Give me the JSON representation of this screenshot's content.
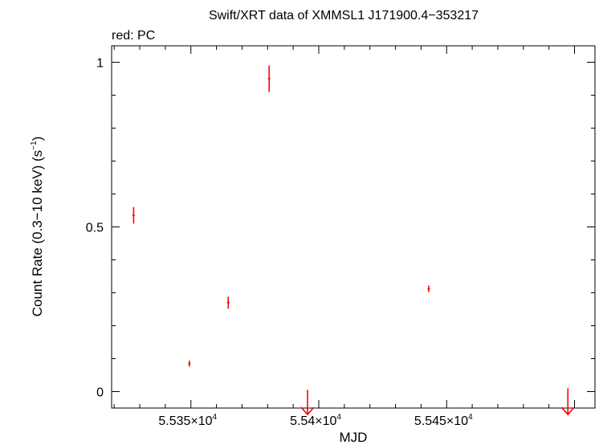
{
  "chart_data": {
    "type": "scatter",
    "title": "Swift/XRT data of XMMSL1 J171900.4−353217",
    "subtitle": "red: PC",
    "xlabel": "MJD",
    "ylabel": "Count Rate (0.3−10 keV) (s",
    "ylabel_sup": "−1",
    "ylabel_close": ")",
    "xlim": [
      55319,
      55508
    ],
    "ylim": [
      -0.05,
      1.05
    ],
    "grid": false,
    "x_ticks": [
      {
        "value": 55350,
        "mantissa": "5.535×10",
        "exp": "4"
      },
      {
        "value": 55400,
        "mantissa": "5.54×10",
        "exp": "4"
      },
      {
        "value": 55450,
        "mantissa": "5.545×10",
        "exp": "4"
      }
    ],
    "y_ticks": [
      {
        "value": 0,
        "label": "0"
      },
      {
        "value": 0.5,
        "label": "0.5"
      },
      {
        "value": 1,
        "label": "1"
      }
    ],
    "series": [
      {
        "color": "#ff0000",
        "points": [
          {
            "x": 55327.6,
            "y": 0.535,
            "ylo": 0.51,
            "yhi": 0.56
          },
          {
            "x": 55349.4,
            "y": 0.085,
            "ylo": 0.076,
            "yhi": 0.094
          },
          {
            "x": 55364.6,
            "y": 0.27,
            "ylo": 0.252,
            "yhi": 0.288
          },
          {
            "x": 55380.6,
            "y": 0.95,
            "ylo": 0.91,
            "yhi": 0.99
          },
          {
            "x": 55443.0,
            "y": 0.312,
            "ylo": 0.302,
            "yhi": 0.322
          }
        ],
        "upper_limits": [
          {
            "x": 55395.6,
            "y": 0.01
          },
          {
            "x": 55497.4,
            "y": 0.015
          }
        ]
      }
    ]
  }
}
